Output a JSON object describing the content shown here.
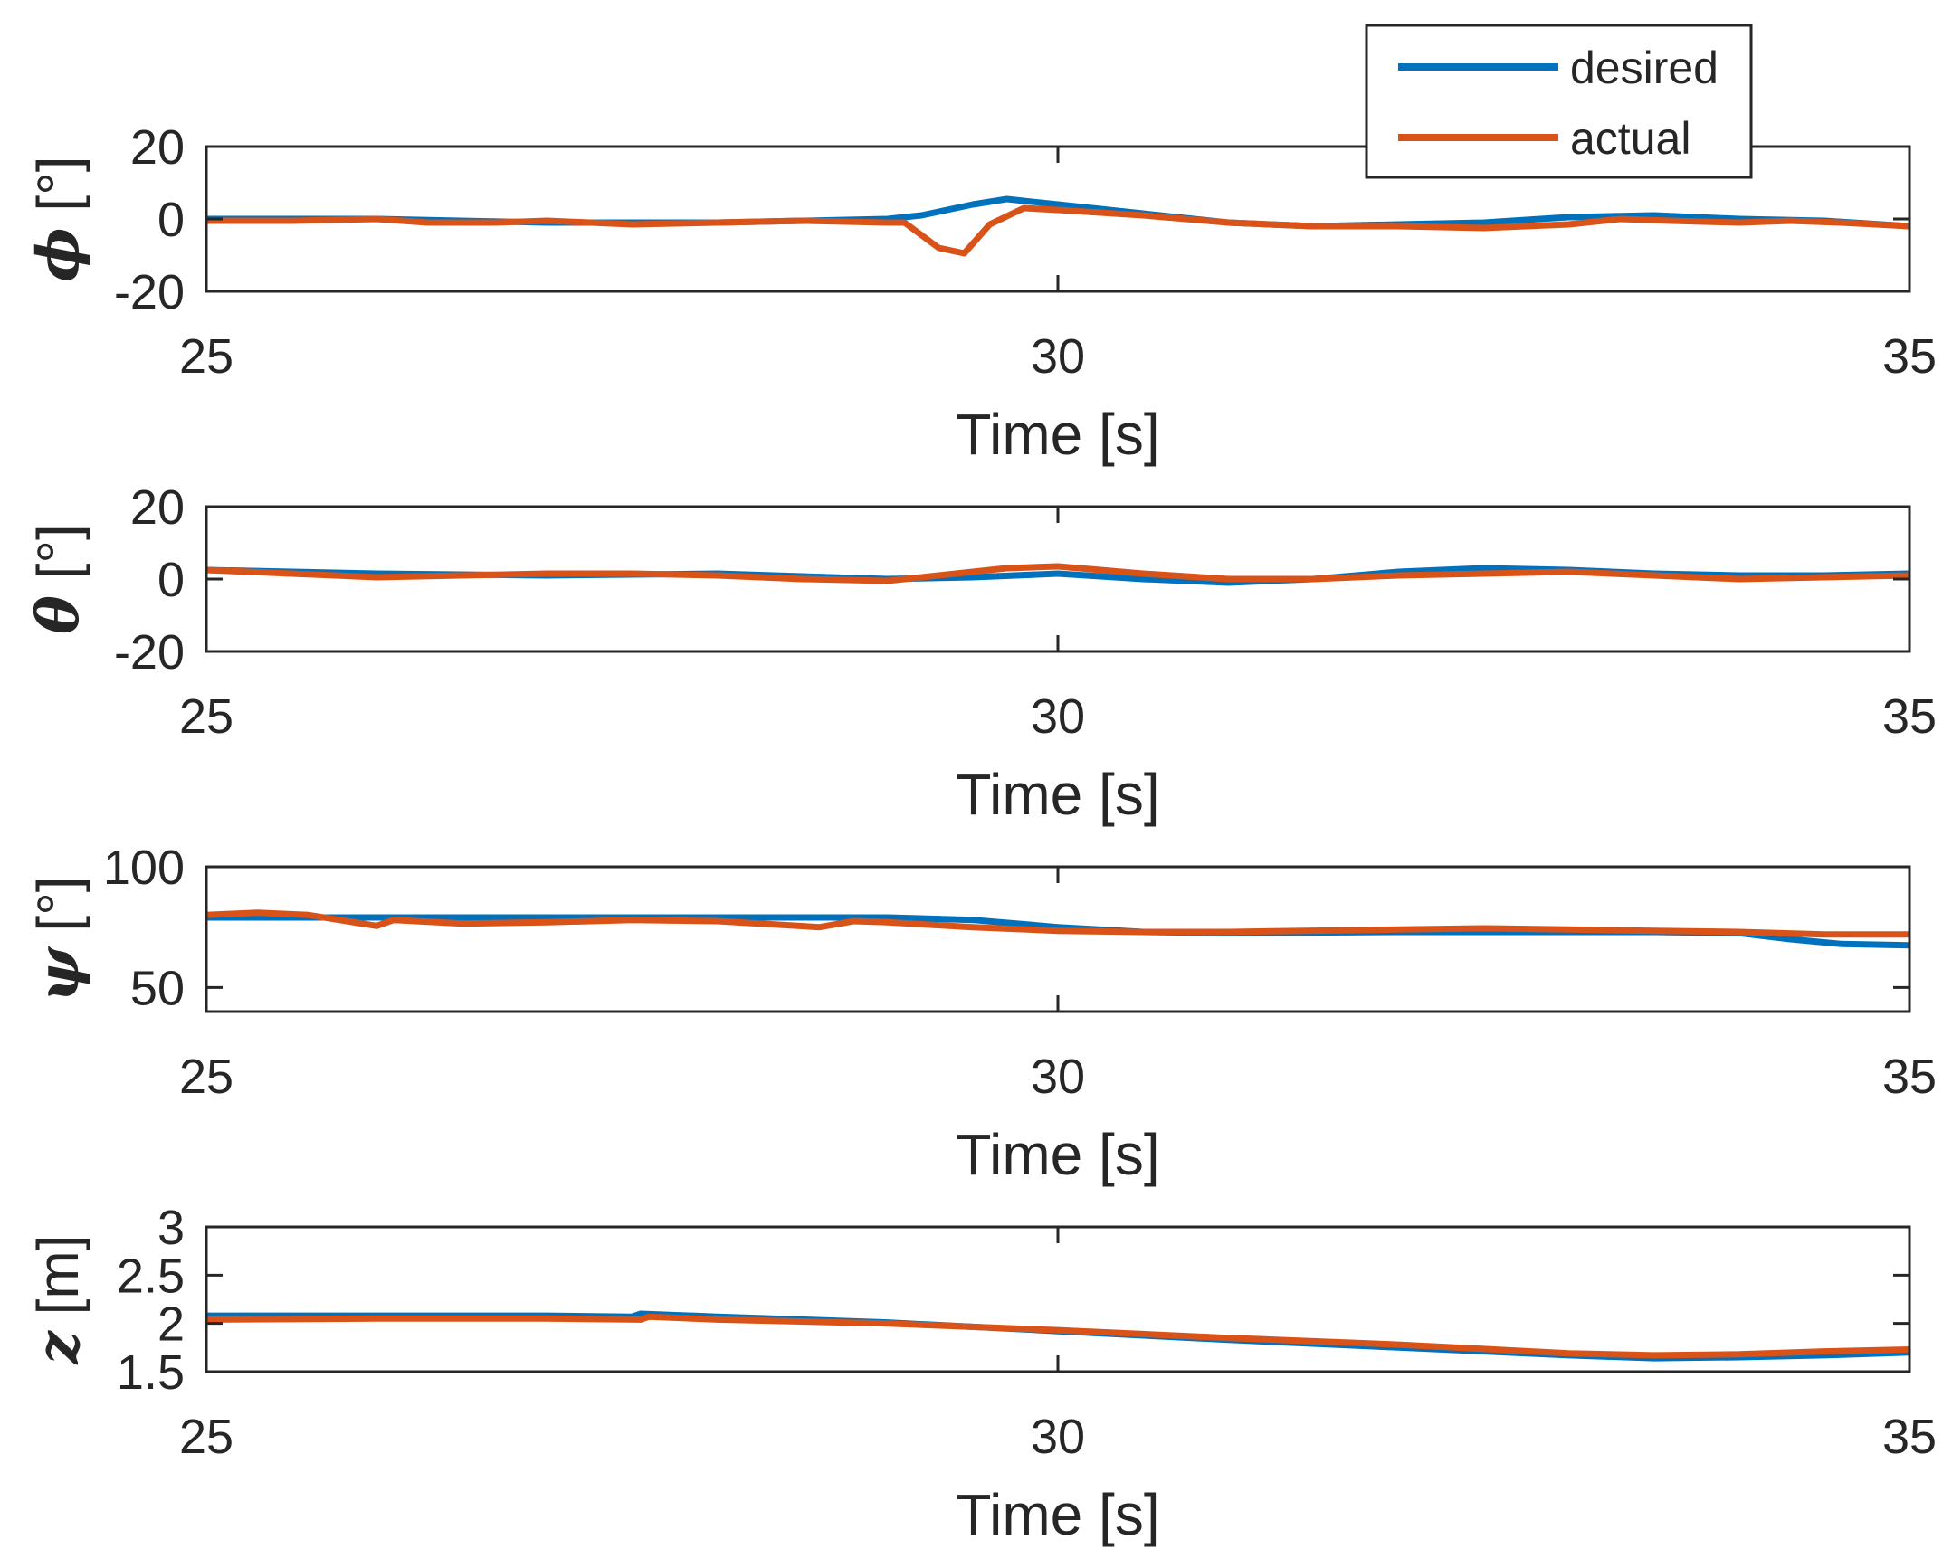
{
  "chart_data": [
    {
      "type": "line",
      "ylabel_symbol": "ϕ",
      "ylabel_unit": " [°]",
      "xlabel": "Time [s]",
      "xlim": [
        25,
        35
      ],
      "ylim": [
        -20,
        20
      ],
      "xticks": [
        "25",
        "30",
        "35"
      ],
      "yticks": [
        "20",
        "0",
        "-20"
      ],
      "ytick_values": [
        20,
        0,
        -20
      ],
      "series": [
        {
          "name": "desired",
          "color": "#0072BD",
          "x": [
            25,
            26,
            27,
            28,
            28.5,
            29,
            29.2,
            29.5,
            29.7,
            30,
            30.5,
            31,
            31.5,
            32,
            32.5,
            33,
            33.5,
            34,
            34.5,
            35
          ],
          "y": [
            0,
            0,
            -1,
            -1,
            -0.5,
            0,
            1,
            4,
            5.5,
            4,
            1.5,
            -1,
            -2,
            -1.5,
            -1,
            0.5,
            1,
            0,
            -0.5,
            -2
          ]
        },
        {
          "name": "actual",
          "color": "#D95319",
          "x": [
            25,
            25.5,
            26,
            26.3,
            26.7,
            27,
            27.5,
            28,
            28.5,
            29,
            29.1,
            29.3,
            29.45,
            29.6,
            29.8,
            30,
            30.5,
            31,
            31.5,
            32,
            32.5,
            33,
            33.3,
            33.6,
            34,
            34.3,
            34.6,
            35
          ],
          "y": [
            -0.5,
            -0.5,
            0,
            -1,
            -1,
            -0.5,
            -1.5,
            -1,
            -0.5,
            -1,
            -1,
            -8,
            -9.5,
            -1.5,
            3,
            2.5,
            1,
            -1,
            -2,
            -2,
            -2.5,
            -1.5,
            0,
            -0.5,
            -1,
            -0.5,
            -1,
            -2
          ]
        }
      ]
    },
    {
      "type": "line",
      "ylabel_symbol": "θ",
      "ylabel_unit": " [°]",
      "xlabel": "Time [s]",
      "xlim": [
        25,
        35
      ],
      "ylim": [
        -20,
        20
      ],
      "xticks": [
        "25",
        "30",
        "35"
      ],
      "yticks": [
        "20",
        "0",
        "-20"
      ],
      "ytick_values": [
        20,
        0,
        -20
      ],
      "series": [
        {
          "name": "desired",
          "color": "#0072BD",
          "x": [
            25,
            26,
            27,
            28,
            29,
            29.5,
            30,
            30.5,
            31,
            31.5,
            32,
            32.5,
            33,
            33.5,
            34,
            34.5,
            35
          ],
          "y": [
            2.5,
            1.5,
            1,
            1.5,
            0,
            0.5,
            1.5,
            0,
            -1,
            0,
            2,
            3,
            2.5,
            1.5,
            1,
            1,
            1.5
          ]
        },
        {
          "name": "actual",
          "color": "#D95319",
          "x": [
            25,
            25.5,
            26,
            26.5,
            27,
            27.5,
            28,
            28.5,
            29,
            29.4,
            29.7,
            30,
            30.5,
            31,
            31.5,
            32,
            32.5,
            33,
            33.5,
            34,
            34.5,
            35
          ],
          "y": [
            2.5,
            1.5,
            0.5,
            1,
            1.5,
            1.5,
            1,
            0,
            -0.5,
            1.5,
            3,
            3.5,
            1.5,
            0,
            0,
            1,
            1.5,
            2,
            1,
            0,
            0.5,
            1
          ]
        }
      ]
    },
    {
      "type": "line",
      "ylabel_symbol": "ψ",
      "ylabel_unit": " [°]",
      "xlabel": "Time [s]",
      "xlim": [
        25,
        35
      ],
      "ylim": [
        40,
        100
      ],
      "xticks": [
        "25",
        "30",
        "35"
      ],
      "yticks": [
        "100",
        "50"
      ],
      "ytick_values": [
        100,
        50
      ],
      "series": [
        {
          "name": "desired",
          "color": "#0072BD",
          "x": [
            25,
            26,
            27,
            28,
            29,
            29.5,
            30,
            30.5,
            31,
            32,
            33,
            33.5,
            34,
            34.3,
            34.6,
            35
          ],
          "y": [
            79,
            79,
            79,
            79,
            79,
            78,
            75,
            73,
            72.5,
            73,
            73,
            73,
            72.5,
            70,
            68,
            67.5
          ]
        },
        {
          "name": "actual",
          "color": "#D95319",
          "x": [
            25,
            25.3,
            25.6,
            26,
            26.1,
            26.5,
            27,
            27.5,
            28,
            28.6,
            28.8,
            29,
            29.5,
            30,
            30.5,
            31,
            32,
            32.5,
            33,
            33.5,
            34,
            34.5,
            35
          ],
          "y": [
            80,
            81,
            80,
            75.5,
            78,
            76.5,
            77,
            78,
            77.5,
            75,
            77.5,
            77,
            75,
            73.5,
            73,
            73,
            74,
            74.5,
            74,
            73.5,
            73,
            72,
            72
          ]
        }
      ]
    },
    {
      "type": "line",
      "ylabel_symbol": "z",
      "ylabel_unit": " [m]",
      "xlabel": "Time [s]",
      "xlim": [
        25,
        35
      ],
      "ylim": [
        1.5,
        3
      ],
      "xticks": [
        "25",
        "30",
        "35"
      ],
      "yticks": [
        "3",
        "2.5",
        "2",
        "1.5"
      ],
      "ytick_values": [
        3,
        2.5,
        2,
        1.5
      ],
      "series": [
        {
          "name": "desired",
          "color": "#0072BD",
          "x": [
            25,
            26,
            27,
            27.5,
            27.55,
            28,
            29,
            30,
            31,
            32,
            33,
            33.5,
            34,
            34.5,
            35
          ],
          "y": [
            2.08,
            2.08,
            2.08,
            2.07,
            2.1,
            2.07,
            2.01,
            1.92,
            1.83,
            1.75,
            1.67,
            1.64,
            1.65,
            1.67,
            1.7
          ]
        },
        {
          "name": "actual",
          "color": "#D95319",
          "x": [
            25,
            26,
            27,
            27.55,
            27.6,
            28,
            29,
            30,
            31,
            32,
            33,
            33.5,
            34,
            34.5,
            35
          ],
          "y": [
            2.04,
            2.05,
            2.05,
            2.04,
            2.07,
            2.04,
            2.0,
            1.93,
            1.85,
            1.78,
            1.69,
            1.67,
            1.68,
            1.71,
            1.73
          ]
        }
      ]
    }
  ],
  "legend": {
    "placement": "top-right",
    "entries": [
      {
        "label": "desired",
        "color": "#0072BD"
      },
      {
        "label": "actual",
        "color": "#D95319"
      }
    ]
  }
}
